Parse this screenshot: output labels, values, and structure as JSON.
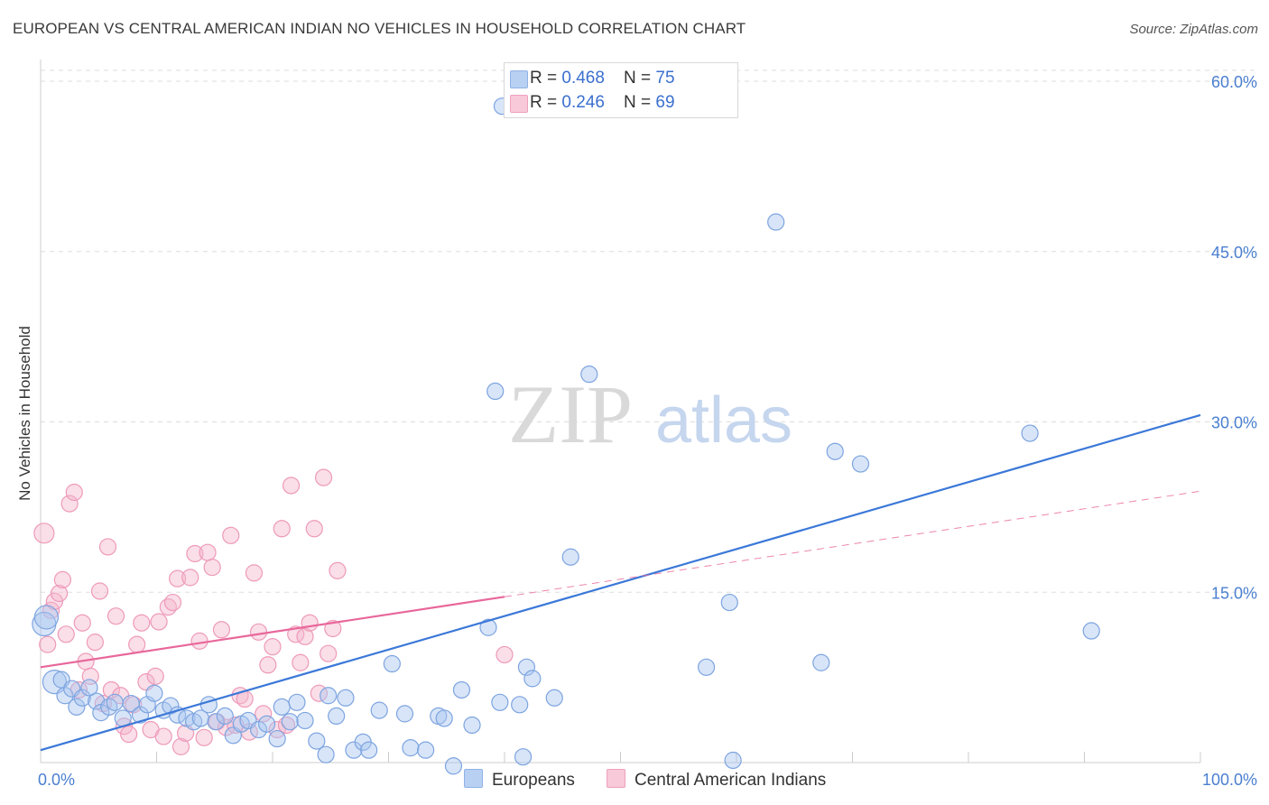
{
  "header": {
    "title": "EUROPEAN VS CENTRAL AMERICAN INDIAN NO VEHICLES IN HOUSEHOLD CORRELATION CHART",
    "source": "Source: ZipAtlas.com"
  },
  "watermark": {
    "zip": "ZIP",
    "atlas": "atlas"
  },
  "legend": {
    "rows": [
      {
        "r_label": "R = ",
        "r_value": "0.468",
        "n_label": "N = ",
        "n_value": "75"
      },
      {
        "r_label": "R = ",
        "r_value": "0.246",
        "n_label": "N = ",
        "n_value": "69"
      }
    ]
  },
  "bottom_legend": {
    "europeans": "Europeans",
    "cai": "Central American Indians"
  },
  "colors": {
    "blue": "#3b78d8",
    "blue_fill": "#a9c6f0",
    "pink": "#e8679a",
    "pink_fill": "#f4b6cb",
    "grid": "#dddddd",
    "tick": "#4a7fd0"
  },
  "chart_data": {
    "type": "scatter",
    "title": "EUROPEAN VS CENTRAL AMERICAN INDIAN NO VEHICLES IN HOUSEHOLD CORRELATION CHART",
    "xlabel": "",
    "ylabel": "No Vehicles in Household",
    "xlim": [
      0,
      100
    ],
    "ylim": [
      0,
      60
    ],
    "x_tick_labels": [
      "0.0%",
      "100.0%"
    ],
    "y_ticks": [
      15,
      30,
      45,
      60
    ],
    "y_tick_labels": [
      "15.0%",
      "30.0%",
      "45.0%",
      "60.0%"
    ],
    "grid": true,
    "legend_position": "top-center",
    "series": [
      {
        "name": "Europeans",
        "R": 0.468,
        "N": 75,
        "trend": {
          "x": [
            0,
            100
          ],
          "y": [
            1.1,
            30.6
          ]
        },
        "points": [
          [
            0.3,
            12.2
          ],
          [
            0.5,
            12.8
          ],
          [
            1.2,
            7.1
          ],
          [
            1.8,
            7.3
          ],
          [
            2.1,
            5.9
          ],
          [
            2.7,
            6.5
          ],
          [
            3.1,
            4.9
          ],
          [
            3.6,
            5.7
          ],
          [
            4.2,
            6.6
          ],
          [
            4.8,
            5.4
          ],
          [
            5.2,
            4.4
          ],
          [
            5.9,
            4.9
          ],
          [
            6.4,
            5.3
          ],
          [
            7.1,
            3.9
          ],
          [
            7.8,
            5.2
          ],
          [
            8.6,
            4.2
          ],
          [
            9.2,
            5.1
          ],
          [
            9.8,
            6.1
          ],
          [
            10.6,
            4.6
          ],
          [
            11.2,
            5.0
          ],
          [
            11.8,
            4.2
          ],
          [
            12.6,
            3.9
          ],
          [
            13.2,
            3.6
          ],
          [
            13.8,
            3.9
          ],
          [
            14.5,
            5.1
          ],
          [
            15.1,
            3.6
          ],
          [
            15.9,
            4.1
          ],
          [
            16.6,
            2.4
          ],
          [
            17.3,
            3.4
          ],
          [
            17.9,
            3.7
          ],
          [
            18.8,
            2.9
          ],
          [
            19.5,
            3.4
          ],
          [
            20.4,
            2.1
          ],
          [
            20.8,
            4.9
          ],
          [
            21.5,
            3.6
          ],
          [
            22.1,
            5.3
          ],
          [
            22.8,
            3.7
          ],
          [
            23.8,
            1.9
          ],
          [
            24.6,
            0.7
          ],
          [
            25.5,
            4.1
          ],
          [
            26.3,
            5.7
          ],
          [
            27.0,
            1.1
          ],
          [
            27.8,
            1.8
          ],
          [
            28.3,
            1.1
          ],
          [
            29.2,
            4.6
          ],
          [
            30.3,
            8.7
          ],
          [
            31.4,
            4.3
          ],
          [
            31.9,
            1.3
          ],
          [
            33.2,
            1.1
          ],
          [
            34.3,
            4.1
          ],
          [
            34.8,
            3.9
          ],
          [
            35.6,
            -0.3
          ],
          [
            36.3,
            6.4
          ],
          [
            37.2,
            3.3
          ],
          [
            38.6,
            11.9
          ],
          [
            39.6,
            5.3
          ],
          [
            39.2,
            32.7
          ],
          [
            41.3,
            5.1
          ],
          [
            41.9,
            8.4
          ],
          [
            42.4,
            7.4
          ],
          [
            44.3,
            5.7
          ],
          [
            45.7,
            18.1
          ],
          [
            47.3,
            34.2
          ],
          [
            57.4,
            8.4
          ],
          [
            59.4,
            14.1
          ],
          [
            63.4,
            47.6
          ],
          [
            68.5,
            27.4
          ],
          [
            85.3,
            29.0
          ],
          [
            90.6,
            11.6
          ],
          [
            39.8,
            57.8
          ],
          [
            59.7,
            0.2
          ],
          [
            67.3,
            8.8
          ],
          [
            41.6,
            0.5
          ],
          [
            24.8,
            5.9
          ],
          [
            70.7,
            26.3
          ]
        ]
      },
      {
        "name": "Central American Indians",
        "R": 0.246,
        "N": 69,
        "trend": {
          "x": [
            0,
            40
          ],
          "y": [
            8.4,
            14.6
          ]
        },
        "trend_extension": {
          "x": [
            40,
            100
          ],
          "y": [
            14.6,
            23.9
          ]
        },
        "points": [
          [
            0.3,
            20.2
          ],
          [
            0.6,
            10.4
          ],
          [
            0.9,
            13.4
          ],
          [
            1.2,
            14.2
          ],
          [
            1.6,
            14.9
          ],
          [
            1.9,
            16.1
          ],
          [
            2.2,
            11.3
          ],
          [
            2.5,
            22.8
          ],
          [
            2.9,
            23.8
          ],
          [
            3.3,
            6.4
          ],
          [
            3.6,
            12.3
          ],
          [
            3.9,
            8.9
          ],
          [
            4.3,
            7.6
          ],
          [
            4.7,
            10.6
          ],
          [
            5.1,
            15.1
          ],
          [
            5.4,
            5.2
          ],
          [
            5.8,
            19.0
          ],
          [
            6.1,
            6.4
          ],
          [
            6.5,
            12.9
          ],
          [
            6.9,
            5.9
          ],
          [
            7.2,
            3.2
          ],
          [
            7.6,
            2.5
          ],
          [
            8.0,
            5.1
          ],
          [
            8.3,
            10.4
          ],
          [
            8.7,
            12.3
          ],
          [
            9.1,
            7.1
          ],
          [
            9.5,
            2.9
          ],
          [
            9.9,
            7.6
          ],
          [
            10.2,
            12.4
          ],
          [
            10.6,
            2.3
          ],
          [
            11.0,
            13.7
          ],
          [
            11.4,
            14.1
          ],
          [
            11.8,
            16.2
          ],
          [
            12.1,
            1.4
          ],
          [
            12.5,
            2.6
          ],
          [
            12.9,
            16.3
          ],
          [
            13.3,
            18.4
          ],
          [
            13.7,
            10.7
          ],
          [
            14.1,
            2.2
          ],
          [
            14.4,
            18.5
          ],
          [
            14.8,
            17.2
          ],
          [
            15.2,
            3.6
          ],
          [
            15.6,
            11.7
          ],
          [
            16.0,
            3.1
          ],
          [
            16.4,
            20.0
          ],
          [
            16.8,
            3.3
          ],
          [
            17.2,
            5.9
          ],
          [
            17.6,
            5.6
          ],
          [
            18.0,
            2.7
          ],
          [
            18.4,
            16.7
          ],
          [
            18.8,
            11.5
          ],
          [
            19.2,
            4.3
          ],
          [
            19.6,
            8.6
          ],
          [
            20.0,
            10.2
          ],
          [
            20.4,
            2.9
          ],
          [
            20.8,
            20.6
          ],
          [
            21.2,
            3.3
          ],
          [
            21.6,
            24.4
          ],
          [
            22.0,
            11.3
          ],
          [
            22.4,
            8.8
          ],
          [
            22.8,
            11.1
          ],
          [
            23.2,
            12.3
          ],
          [
            23.6,
            20.6
          ],
          [
            24.0,
            6.1
          ],
          [
            24.4,
            25.1
          ],
          [
            24.8,
            9.6
          ],
          [
            25.2,
            11.8
          ],
          [
            25.6,
            16.9
          ],
          [
            40.0,
            9.5
          ]
        ]
      }
    ]
  }
}
